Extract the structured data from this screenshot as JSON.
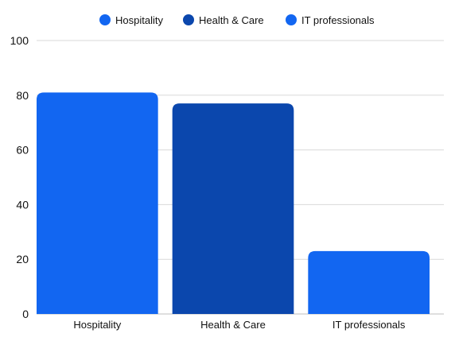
{
  "chart_data": {
    "type": "bar",
    "categories": [
      "Hospitality",
      "Health & Care",
      "IT professionals"
    ],
    "values": [
      81,
      77,
      23
    ],
    "ylim": [
      0,
      100
    ],
    "yticks": [
      0,
      20,
      40,
      60,
      80,
      100
    ],
    "grid": true,
    "legend_position": "top-center",
    "legend": [
      {
        "label": "Hospitality",
        "color": "#1266f1"
      },
      {
        "label": "Health & Care",
        "color": "#0b47ad"
      },
      {
        "label": "IT professionals",
        "color": "#1266f1"
      }
    ],
    "colors": [
      "#1266f1",
      "#0b47ad",
      "#1266f1"
    ],
    "title": "",
    "xlabel": "",
    "ylabel": ""
  }
}
